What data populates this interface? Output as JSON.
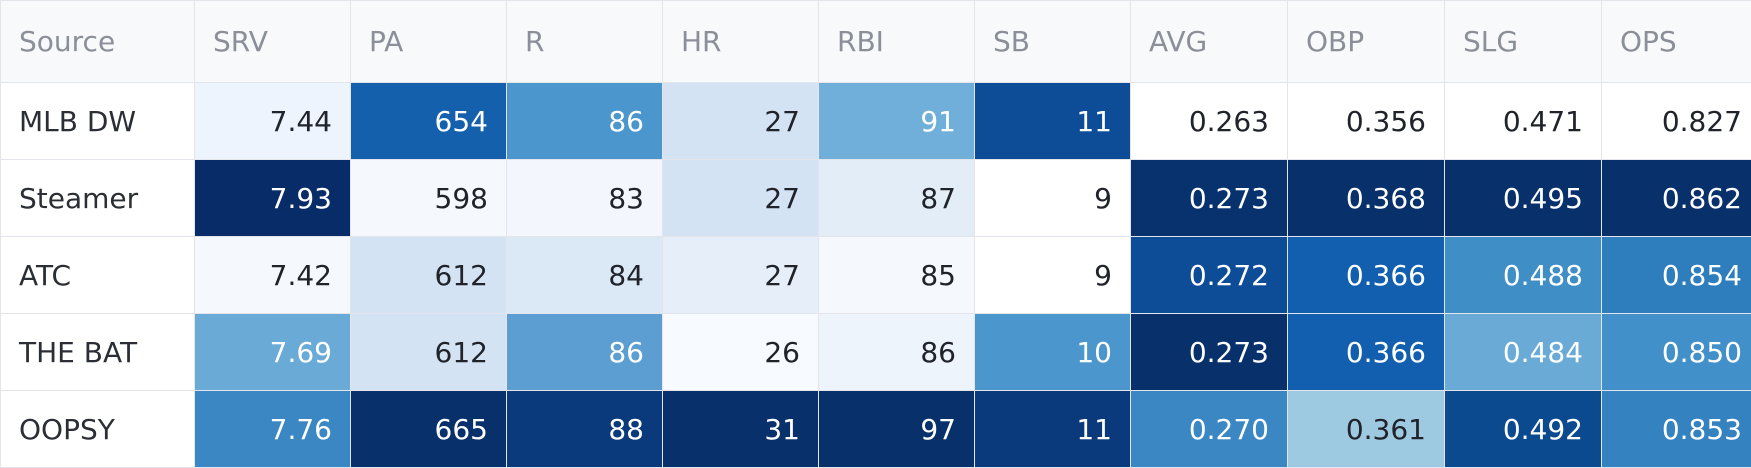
{
  "table": {
    "columns": [
      "Source",
      "SRV",
      "PA",
      "R",
      "HR",
      "RBI",
      "SB",
      "AVG",
      "OBP",
      "SLG",
      "OPS"
    ],
    "rows": [
      {
        "source": "MLB DW",
        "values": [
          "7.44",
          "654",
          "86",
          "27",
          "91",
          "11",
          "0.263",
          "0.356",
          "0.471",
          "0.827"
        ],
        "colors": [
          "#edf4fd",
          "#1460ac",
          "#4b97cd",
          "#d3e3f3",
          "#70afda",
          "#0d4c96",
          "#ffffff",
          "#ffffff",
          "#ffffff",
          "#ffffff"
        ]
      },
      {
        "source": "Steamer",
        "values": [
          "7.93",
          "598",
          "83",
          "27",
          "87",
          "9",
          "0.273",
          "0.368",
          "0.495",
          "0.862"
        ],
        "colors": [
          "#082c68",
          "#f5f9fe",
          "#f3f7fd",
          "#d3e3f3",
          "#e3edf8",
          "#ffffff",
          "#08326e",
          "#08306b",
          "#08306b",
          "#08306b"
        ]
      },
      {
        "source": "ATC",
        "values": [
          "7.42",
          "612",
          "84",
          "27",
          "85",
          "9",
          "0.272",
          "0.366",
          "0.488",
          "0.854"
        ],
        "colors": [
          "#f5f9fe",
          "#d3e3f3",
          "#dbe8f5",
          "#e6eff9",
          "#f5f9fe",
          "#ffffff",
          "#0d4c96",
          "#115fae",
          "#3f8ec6",
          "#2e7ebe"
        ]
      },
      {
        "source": "THE BAT",
        "values": [
          "7.69",
          "612",
          "86",
          "26",
          "86",
          "10",
          "0.273",
          "0.366",
          "0.484",
          "0.850"
        ],
        "colors": [
          "#6aaad7",
          "#d3e3f3",
          "#5c9ed1",
          "#f7fbff",
          "#eef4fb",
          "#4a96cd",
          "#08306b",
          "#115fae",
          "#6aaad7",
          "#4290c9"
        ]
      },
      {
        "source": "OOPSY",
        "values": [
          "7.76",
          "665",
          "88",
          "31",
          "97",
          "11",
          "0.270",
          "0.361",
          "0.492",
          "0.853"
        ],
        "colors": [
          "#3a87c4",
          "#08306b",
          "#0a3a7b",
          "#08306b",
          "#08306b",
          "#0a3a7b",
          "#3a87c4",
          "#9ecae1",
          "#0c4a90",
          "#3582c0"
        ]
      }
    ]
  },
  "colors": {
    "header_bg": "#f8f9fb",
    "header_text": "#8a8f98",
    "border": "#e3e5ea",
    "dark_text": "#20232a",
    "light_text": "#ffffff"
  }
}
